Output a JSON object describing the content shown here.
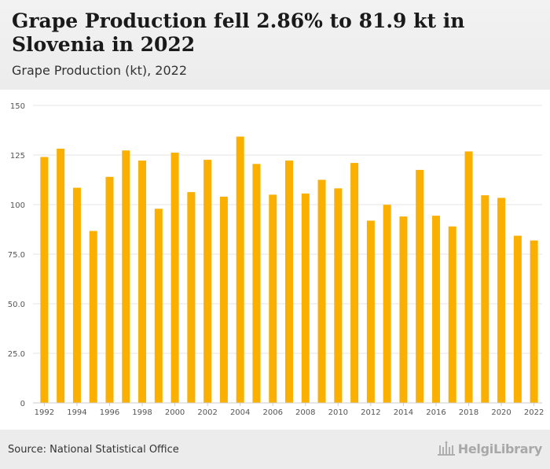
{
  "header": {
    "title": "Grape Production fell 2.86% to 81.9 kt in Slovenia in 2022",
    "subtitle": "Grape Production (kt), 2022"
  },
  "footer": {
    "source": "Source: National Statistical Office",
    "logo_text": "HelgiLibrary"
  },
  "colors": {
    "bar": "#fbb000",
    "grid": "#e6e6e6",
    "axis_text": "#555555",
    "header_bg": "#eeeeee"
  },
  "chart_data": {
    "type": "bar",
    "categories": [
      "1992",
      "1993",
      "1994",
      "1995",
      "1996",
      "1997",
      "1998",
      "1999",
      "2000",
      "2001",
      "2002",
      "2003",
      "2004",
      "2005",
      "2006",
      "2007",
      "2008",
      "2009",
      "2010",
      "2011",
      "2012",
      "2013",
      "2014",
      "2015",
      "2016",
      "2017",
      "2018",
      "2019",
      "2020",
      "2021",
      "2022"
    ],
    "x_tick_labels": [
      "1992",
      "1994",
      "1996",
      "1998",
      "2000",
      "2002",
      "2004",
      "2006",
      "2008",
      "2010",
      "2012",
      "2014",
      "2016",
      "2018",
      "2020",
      "2022"
    ],
    "values": [
      124.0,
      128.2,
      108.5,
      86.7,
      114.0,
      127.3,
      122.2,
      97.9,
      126.2,
      106.3,
      122.6,
      104.0,
      134.3,
      120.5,
      105.0,
      122.2,
      105.6,
      112.5,
      108.2,
      121.0,
      91.9,
      99.9,
      94.0,
      117.5,
      94.4,
      89.0,
      126.8,
      104.7,
      103.4,
      84.3,
      81.9
    ],
    "y_ticks": [
      0,
      25.0,
      50.0,
      75.0,
      100,
      125,
      150
    ],
    "y_tick_labels": [
      "0",
      "25.0",
      "50.0",
      "75.0",
      "100",
      "125",
      "150"
    ],
    "ylim": [
      0,
      150
    ],
    "grid": true,
    "legend": "none"
  }
}
